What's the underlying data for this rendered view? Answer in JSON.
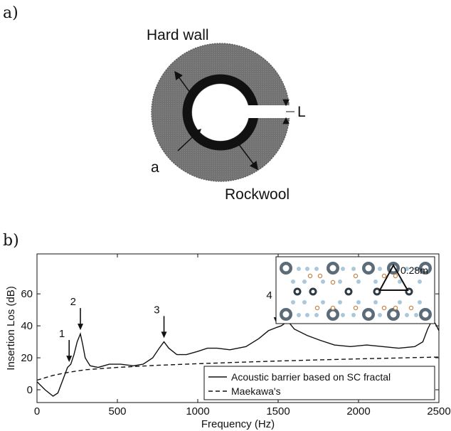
{
  "panel_a": {
    "label": "a)",
    "hard_wall_label": "Hard wall",
    "rockwool_label": "Rockwool",
    "radius_label": "a",
    "slit_label": "L"
  },
  "panel_b": {
    "label": "b)",
    "inset_dimension_label": "0.28m"
  },
  "chart_data": {
    "type": "line",
    "xlabel": "Frequency (Hz)",
    "ylabel": "Insertion Los (dB)",
    "xlim": [
      0,
      2500
    ],
    "ylim": [
      -8,
      85
    ],
    "x_ticks": [
      0,
      500,
      1000,
      1500,
      2000,
      2500
    ],
    "y_ticks": [
      0,
      20,
      40,
      60
    ],
    "grid": false,
    "legend_position": "bottom-right",
    "series": [
      {
        "name": "Acoustic barrier based on SC fractal",
        "style": "solid",
        "color": "#111111",
        "x": [
          0,
          50,
          100,
          130,
          160,
          190,
          210,
          230,
          250,
          270,
          285,
          300,
          330,
          380,
          450,
          520,
          600,
          660,
          720,
          760,
          790,
          820,
          870,
          930,
          1000,
          1060,
          1120,
          1200,
          1300,
          1380,
          1440,
          1490,
          1520,
          1560,
          1600,
          1680,
          1760,
          1850,
          1950,
          2050,
          2150,
          2250,
          2350,
          2400,
          2430,
          2460,
          2480,
          2500
        ],
        "y": [
          5,
          0,
          -4,
          -2,
          6,
          14,
          16,
          22,
          30,
          35,
          28,
          20,
          15,
          14,
          16,
          16,
          15,
          16,
          20,
          26,
          30,
          26,
          22,
          22,
          24,
          26,
          26,
          25,
          27,
          32,
          37,
          39,
          40,
          43,
          38,
          34,
          31,
          28,
          27,
          28,
          27,
          26,
          27,
          30,
          38,
          44,
          41,
          37
        ]
      },
      {
        "name": "Maekawa's",
        "style": "dashed",
        "color": "#111111",
        "x": [
          0,
          100,
          200,
          300,
          500,
          750,
          1000,
          1250,
          1500,
          1750,
          2000,
          2250,
          2500
        ],
        "y": [
          6,
          9,
          11,
          12.5,
          14,
          15.3,
          16.3,
          17.2,
          18,
          18.7,
          19.3,
          19.9,
          20.5
        ]
      }
    ],
    "annotations": [
      {
        "text": "1",
        "x": 200,
        "y": 16
      },
      {
        "text": "2",
        "x": 270,
        "y": 36
      },
      {
        "text": "3",
        "x": 790,
        "y": 31
      },
      {
        "text": "4",
        "x": 1490,
        "y": 40
      }
    ]
  }
}
